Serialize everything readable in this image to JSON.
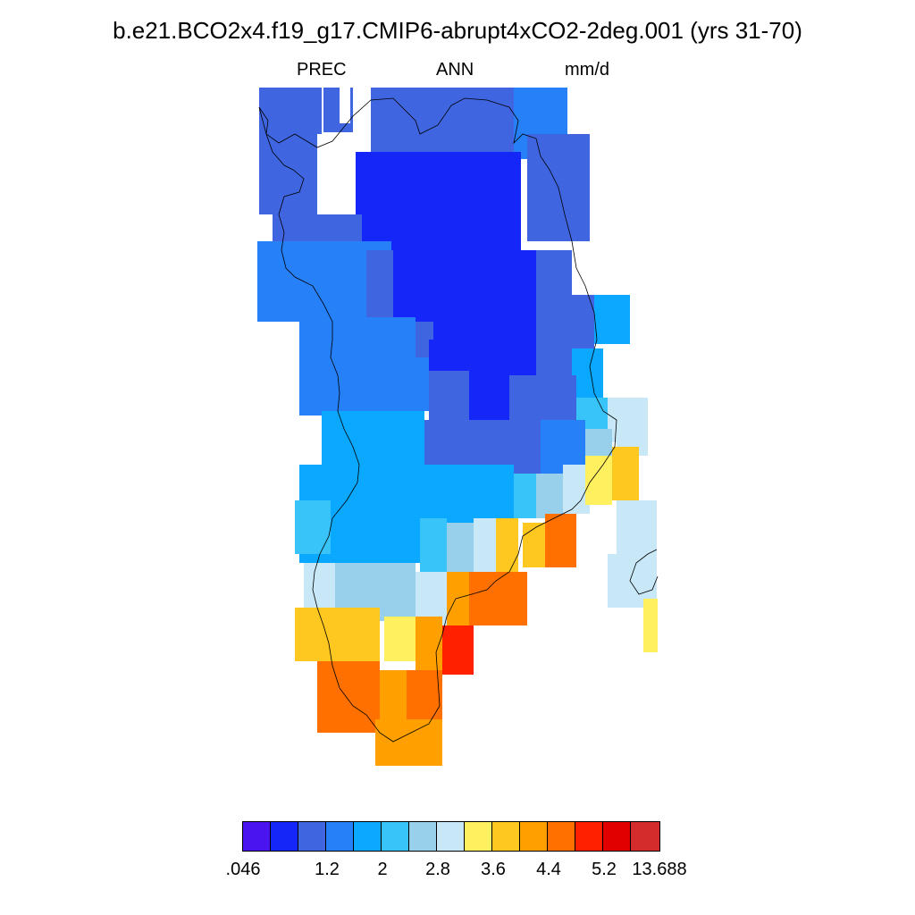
{
  "title": "b.e21.BCO2x4.f19_g17.CMIP6-abrupt4xCO2-2deg.001 (yrs 31-70)",
  "subtitle": {
    "variable": "PREC",
    "period": "ANN",
    "units": "mm/d"
  },
  "colorbar": {
    "colors": [
      "#4a14f0",
      "#1426f8",
      "#3f66e0",
      "#2680f8",
      "#0aa8ff",
      "#38c4f8",
      "#98d0ec",
      "#c8e8f8",
      "#fff060",
      "#ffc820",
      "#ffa000",
      "#ff7000",
      "#ff2000",
      "#e00000",
      "#d42c2c"
    ],
    "labels": [
      ".046",
      "1.2",
      "2",
      "2.8",
      "3.6",
      "4.4",
      "5.2",
      "13.688"
    ]
  },
  "chart_data": {
    "type": "heatmap",
    "title": "b.e21.BCO2x4.f19_g17.CMIP6-abrupt4xCO2-2deg.001 (yrs 31-70)",
    "variable": "PREC",
    "season": "ANN",
    "units": "mm/d",
    "colorbar_levels": [
      ".046",
      "1.2",
      "2",
      "2.8",
      "3.6",
      "4.4",
      "5.2",
      "13.688"
    ],
    "regions": [
      {
        "area": "far north (high latitudes)",
        "color_index": 2
      },
      {
        "area": "northern interior",
        "color_index": 1
      },
      {
        "area": "mid-latitude band",
        "color_index": 3
      },
      {
        "area": "central band",
        "color_index": 4
      },
      {
        "area": "southern coastal band",
        "color_index": 7
      },
      {
        "area": "far south",
        "color_index": 9
      },
      {
        "area": "south-east cells",
        "color_index": 11
      },
      {
        "area": "southernmost peak",
        "color_index": 12
      }
    ]
  }
}
